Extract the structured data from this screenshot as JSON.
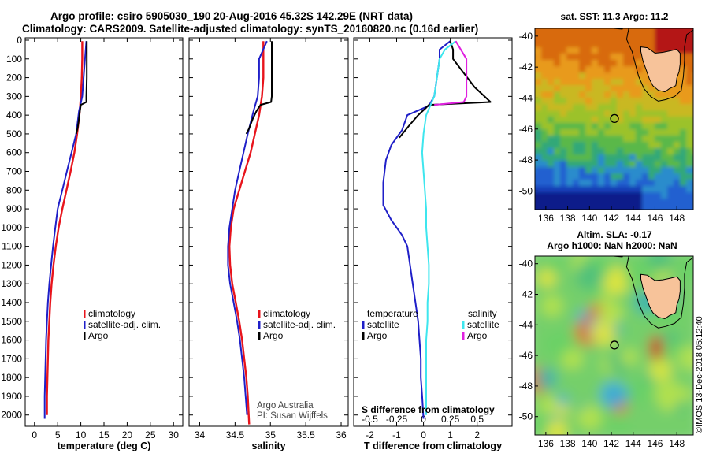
{
  "header": {
    "line1": "Argo profile: csiro 5905030_190 20-Aug-2016 45.32S 142.29E (NRT data)",
    "line2": "Climatology: CARS2009. Satellite-adjusted climatology: synTS_20160820.nc (0.16d earlier)"
  },
  "credit": {
    "org": "Argo Australia",
    "pi": "PI: Susan Wijffels",
    "watermark": "©IMOS 13-Dec-2018 05:12:40"
  },
  "colors": {
    "climatology": "#e8141c",
    "satellite": "#1f1fc8",
    "argo": "#000000",
    "sat_salinity": "#3ee6ee",
    "argo_salinity": "#e020e0",
    "land": "#f7c39a"
  },
  "chart_data": [
    {
      "type": "line",
      "id": "temp",
      "xlabel": "temperature (deg C)",
      "ylabel": "",
      "xlim": [
        -2,
        32
      ],
      "ylim": [
        2060,
        0
      ],
      "xticks": [
        0,
        5,
        10,
        15,
        20,
        25,
        30
      ],
      "xtick_labels": [
        "0",
        "5",
        "10",
        "15",
        "20",
        "25",
        "30"
      ],
      "yticks": [
        0,
        100,
        200,
        300,
        400,
        500,
        600,
        700,
        800,
        900,
        1000,
        1100,
        1200,
        1300,
        1400,
        1500,
        1600,
        1700,
        1800,
        1900,
        2000
      ],
      "ytick_labels": [
        "0",
        "100",
        "200",
        "300",
        "400",
        "500",
        "600",
        "700",
        "800",
        "900",
        "1000",
        "1100",
        "1200",
        "1300",
        "1400",
        "1500",
        "1600",
        "1700",
        "1800",
        "1900",
        "2000"
      ],
      "legend": [
        "climatology",
        "satellite-adj. clim.",
        "Argo"
      ],
      "series": [
        {
          "name": "climatology",
          "color": "#e8141c",
          "points": [
            [
              10.3,
              5
            ],
            [
              10.3,
              100
            ],
            [
              10.2,
              200
            ],
            [
              10.0,
              300
            ],
            [
              9.7,
              400
            ],
            [
              9.2,
              500
            ],
            [
              8.6,
              600
            ],
            [
              7.8,
              700
            ],
            [
              6.9,
              800
            ],
            [
              6.0,
              900
            ],
            [
              5.2,
              1000
            ],
            [
              4.6,
              1100
            ],
            [
              4.1,
              1200
            ],
            [
              3.7,
              1300
            ],
            [
              3.4,
              1400
            ],
            [
              3.2,
              1500
            ],
            [
              3.0,
              1600
            ],
            [
              2.9,
              1700
            ],
            [
              2.8,
              1800
            ],
            [
              2.7,
              1900
            ],
            [
              2.7,
              2000
            ]
          ]
        },
        {
          "name": "satellite-adj. clim.",
          "color": "#1f1fc8",
          "points": [
            [
              11.2,
              5
            ],
            [
              10.9,
              100
            ],
            [
              10.6,
              200
            ],
            [
              10.3,
              300
            ],
            [
              9.6,
              380
            ],
            [
              9.0,
              500
            ],
            [
              8.0,
              600
            ],
            [
              7.0,
              700
            ],
            [
              6.0,
              800
            ],
            [
              5.0,
              900
            ],
            [
              4.5,
              1000
            ],
            [
              4.0,
              1100
            ],
            [
              3.6,
              1200
            ],
            [
              3.2,
              1300
            ],
            [
              2.9,
              1400
            ],
            [
              2.7,
              1500
            ],
            [
              2.5,
              1600
            ],
            [
              2.4,
              1700
            ],
            [
              2.3,
              1800
            ],
            [
              2.2,
              1900
            ],
            [
              2.2,
              2020
            ]
          ]
        },
        {
          "name": "Argo",
          "color": "#000000",
          "points": [
            [
              11.3,
              5
            ],
            [
              11.3,
              100
            ],
            [
              11.3,
              200
            ],
            [
              11.2,
              300
            ],
            [
              11.2,
              330
            ],
            [
              10.0,
              345
            ],
            [
              9.8,
              380
            ],
            [
              9.6,
              420
            ],
            [
              9.3,
              470
            ],
            [
              9.0,
              500
            ]
          ]
        }
      ]
    },
    {
      "type": "line",
      "id": "sal",
      "xlabel": "salinity",
      "ylabel": "",
      "xlim": [
        33.85,
        36.1
      ],
      "ylim": [
        2060,
        0
      ],
      "xticks": [
        34,
        34.5,
        35,
        35.5,
        36
      ],
      "xtick_labels": [
        "34",
        "34.5",
        "35",
        "35.5",
        "36"
      ],
      "legend": [
        "climatology",
        "satellite-adj. clim.",
        "Argo"
      ],
      "series": [
        {
          "name": "climatology",
          "color": "#e8141c",
          "points": [
            [
              34.9,
              5
            ],
            [
              34.9,
              100
            ],
            [
              34.9,
              200
            ],
            [
              34.88,
              300
            ],
            [
              34.84,
              400
            ],
            [
              34.78,
              500
            ],
            [
              34.72,
              600
            ],
            [
              34.64,
              700
            ],
            [
              34.56,
              800
            ],
            [
              34.48,
              900
            ],
            [
              34.44,
              1000
            ],
            [
              34.42,
              1100
            ],
            [
              34.43,
              1200
            ],
            [
              34.46,
              1300
            ],
            [
              34.51,
              1400
            ],
            [
              34.56,
              1500
            ],
            [
              34.6,
              1600
            ],
            [
              34.63,
              1700
            ],
            [
              34.66,
              1800
            ],
            [
              34.68,
              1900
            ],
            [
              34.7,
              2050
            ]
          ]
        },
        {
          "name": "satellite-adj. clim.",
          "color": "#1f1fc8",
          "points": [
            [
              34.95,
              5
            ],
            [
              34.84,
              100
            ],
            [
              34.84,
              150
            ],
            [
              34.84,
              200
            ],
            [
              34.82,
              300
            ],
            [
              34.76,
              380
            ],
            [
              34.68,
              500
            ],
            [
              34.62,
              600
            ],
            [
              34.56,
              700
            ],
            [
              34.5,
              800
            ],
            [
              34.46,
              900
            ],
            [
              34.42,
              1000
            ],
            [
              34.4,
              1100
            ],
            [
              34.4,
              1200
            ],
            [
              34.43,
              1300
            ],
            [
              34.48,
              1400
            ],
            [
              34.53,
              1500
            ],
            [
              34.57,
              1600
            ],
            [
              34.6,
              1700
            ],
            [
              34.63,
              1800
            ],
            [
              34.65,
              1900
            ],
            [
              34.67,
              2000
            ]
          ]
        },
        {
          "name": "Argo",
          "color": "#000000",
          "points": [
            [
              35.02,
              5
            ],
            [
              35.02,
              100
            ],
            [
              35.02,
              200
            ],
            [
              35.02,
              300
            ],
            [
              35.01,
              330
            ],
            [
              34.86,
              345
            ],
            [
              34.8,
              380
            ],
            [
              34.75,
              420
            ],
            [
              34.7,
              470
            ],
            [
              34.66,
              500
            ]
          ]
        }
      ]
    },
    {
      "type": "line",
      "id": "diff",
      "xlabel": "T difference from climatology",
      "ylabel": "",
      "title2": "S difference from climatology",
      "xlim": [
        -2.6,
        3.3
      ],
      "ylim": [
        2060,
        0
      ],
      "xticks": [
        -2,
        -1,
        0,
        1,
        2
      ],
      "xtick_labels": [
        "-2",
        "-1",
        "0",
        "1",
        "2"
      ],
      "top_xticks": [
        -2,
        -1,
        0,
        1,
        2
      ],
      "top_xtick_labels": [
        "-0.5",
        "-0.25",
        "0",
        "0.25",
        "0.5"
      ],
      "legend_left_title": "temperature",
      "legend_right_title": "salinity",
      "legend_left": [
        "satellite",
        "Argo"
      ],
      "legend_right": [
        "satellite",
        "Argo"
      ],
      "series": [
        {
          "name": "T satellite",
          "color": "#1f1fc8",
          "points": [
            [
              1.0,
              5
            ],
            [
              0.6,
              50
            ],
            [
              0.6,
              100
            ],
            [
              0.5,
              200
            ],
            [
              0.4,
              300
            ],
            [
              0.2,
              350
            ],
            [
              -0.6,
              400
            ],
            [
              -0.8,
              480
            ],
            [
              -1.2,
              560
            ],
            [
              -1.4,
              640
            ],
            [
              -1.5,
              760
            ],
            [
              -1.5,
              880
            ],
            [
              -1.2,
              960
            ],
            [
              -0.8,
              1040
            ],
            [
              -0.6,
              1100
            ],
            [
              -0.5,
              1200
            ],
            [
              -0.4,
              1300
            ],
            [
              -0.3,
              1400
            ],
            [
              -0.2,
              1500
            ],
            [
              -0.15,
              1600
            ],
            [
              -0.1,
              1700
            ],
            [
              -0.1,
              1800
            ],
            [
              -0.05,
              1900
            ],
            [
              0.0,
              2020
            ]
          ]
        },
        {
          "name": "T Argo",
          "color": "#000000",
          "points": [
            [
              1.0,
              5
            ],
            [
              1.1,
              50
            ],
            [
              1.1,
              100
            ],
            [
              1.9,
              250
            ],
            [
              2.5,
              330
            ],
            [
              0.2,
              345
            ],
            [
              0.1,
              360
            ],
            [
              -0.2,
              400
            ],
            [
              -0.5,
              450
            ],
            [
              -0.9,
              520
            ]
          ]
        },
        {
          "name": "S satellite",
          "color": "#3ee6ee",
          "points": [
            [
              1.2,
              5
            ],
            [
              0.8,
              50
            ],
            [
              0.6,
              100
            ],
            [
              0.5,
              200
            ],
            [
              0.4,
              300
            ],
            [
              0.1,
              400
            ],
            [
              0.0,
              500
            ],
            [
              -0.05,
              600
            ],
            [
              0.0,
              700
            ],
            [
              0.05,
              800
            ],
            [
              0.1,
              900
            ],
            [
              0.1,
              1000
            ],
            [
              0.15,
              1100
            ],
            [
              0.2,
              1200
            ],
            [
              0.2,
              1300
            ],
            [
              0.15,
              1400
            ],
            [
              0.15,
              1500
            ],
            [
              0.1,
              1600
            ],
            [
              0.1,
              1700
            ],
            [
              0.1,
              1800
            ],
            [
              0.1,
              1900
            ],
            [
              0.1,
              2000
            ]
          ]
        },
        {
          "name": "S Argo",
          "color": "#e020e0",
          "points": [
            [
              1.2,
              5
            ],
            [
              1.6,
              100
            ],
            [
              1.6,
              200
            ],
            [
              1.6,
              300
            ],
            [
              1.5,
              330
            ],
            [
              0.4,
              345
            ]
          ]
        }
      ]
    },
    {
      "type": "heatmap",
      "id": "sst",
      "title": "sat. SST: 11.3 Argo: 11.2",
      "xlim": [
        135,
        149.5
      ],
      "ylim": [
        -51.2,
        -39.5
      ],
      "xticks": [
        136,
        138,
        140,
        142,
        144,
        146,
        148
      ],
      "xtick_labels": [
        "136",
        "138",
        "140",
        "142",
        "144",
        "146",
        "148"
      ],
      "yticks": [
        -40,
        -42,
        -44,
        -46,
        -48,
        -50
      ],
      "ytick_labels": [
        "-40",
        "-42",
        "-44",
        "-46",
        "-48",
        "-50"
      ],
      "argo_position": [
        142.29,
        -45.32
      ]
    },
    {
      "type": "heatmap",
      "id": "sla",
      "title": "Altim. SLA: -0.17",
      "subtitle": "Argo h1000: NaN h2000: NaN",
      "xlim": [
        135,
        149.5
      ],
      "ylim": [
        -51.2,
        -39.5
      ],
      "xticks": [
        136,
        138,
        140,
        142,
        144,
        146,
        148
      ],
      "xtick_labels": [
        "136",
        "138",
        "140",
        "142",
        "144",
        "146",
        "148"
      ],
      "yticks": [
        -40,
        -42,
        -44,
        -46,
        -48,
        -50
      ],
      "ytick_labels": [
        "-40",
        "-42",
        "-44",
        "-46",
        "-48",
        "-50"
      ],
      "argo_position": [
        142.29,
        -45.32
      ]
    }
  ]
}
